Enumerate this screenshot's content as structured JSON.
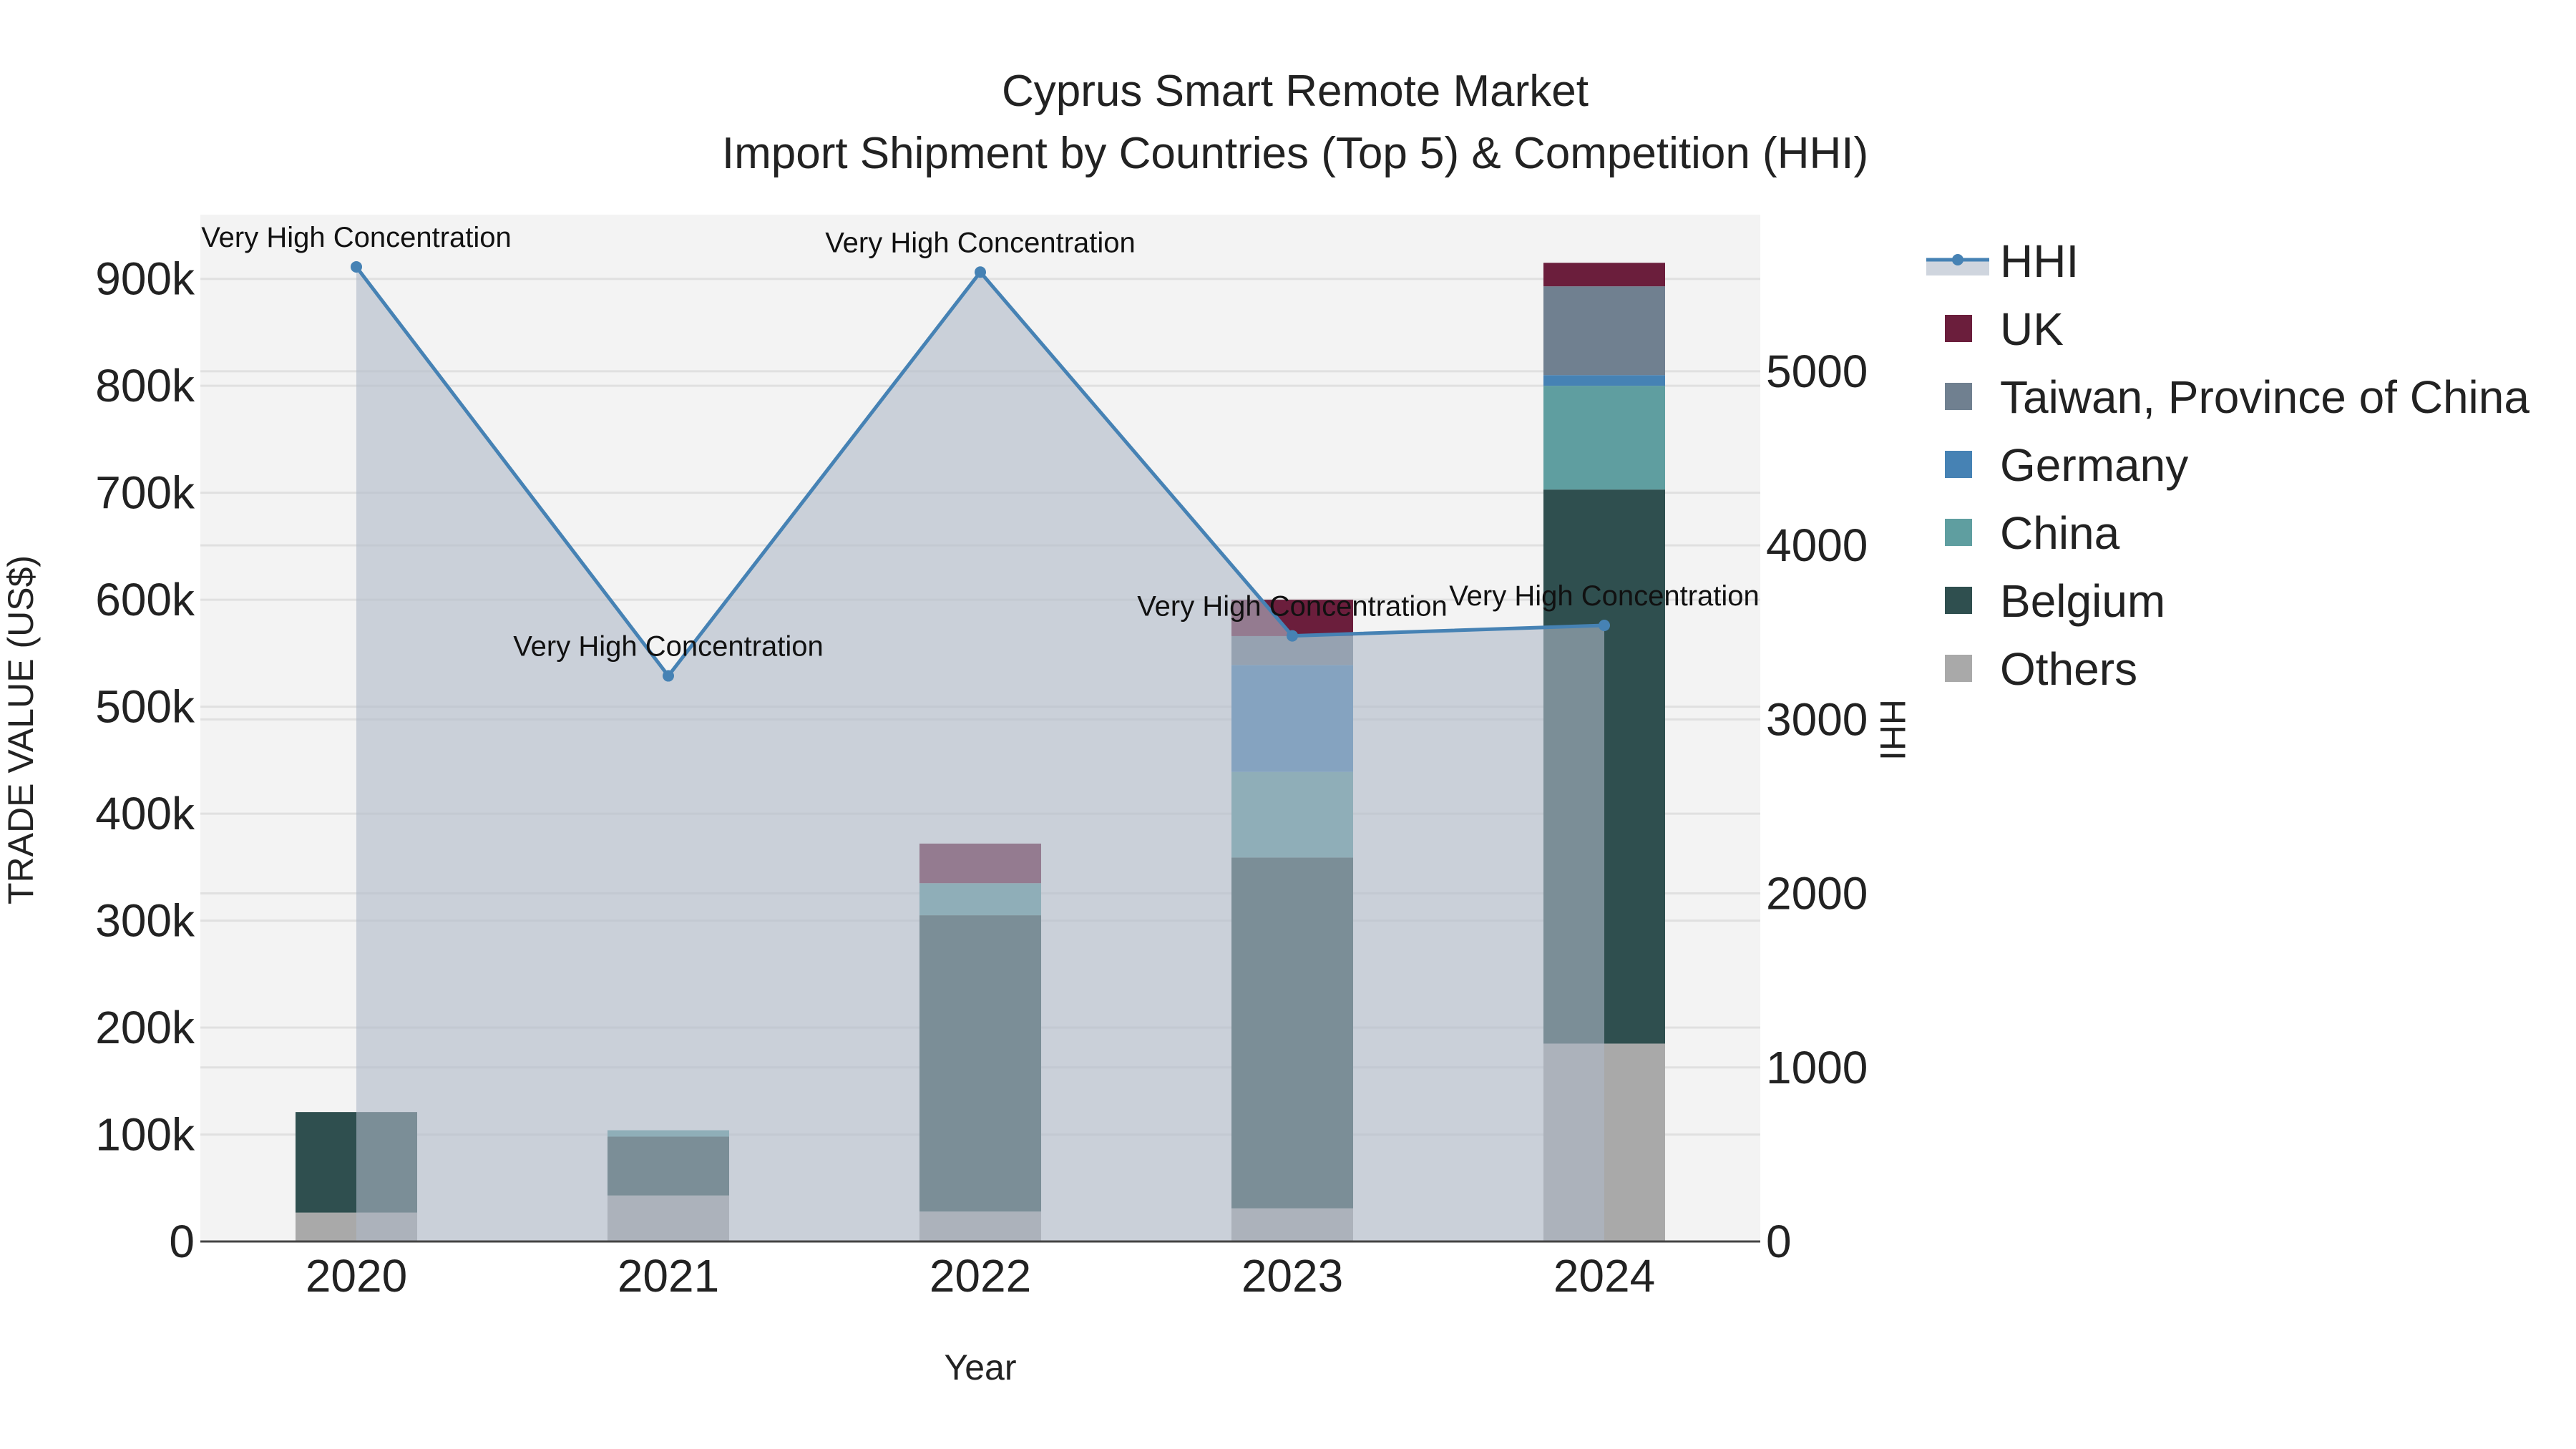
{
  "chart_data": {
    "type": "bar",
    "title": "Cyprus Smart Remote Market",
    "subtitle": "Import Shipment by Countries (Top 5) & Competition (HHI)",
    "xlabel": "Year",
    "ylabel": "TRADE VALUE (US$)",
    "y2label": "HHI",
    "categories": [
      "2020",
      "2021",
      "2022",
      "2023",
      "2024"
    ],
    "ylim": [
      0,
      960000
    ],
    "y2lim": [
      0,
      5900
    ],
    "yticks": [
      0,
      100000,
      200000,
      300000,
      400000,
      500000,
      600000,
      700000,
      800000,
      900000
    ],
    "ytick_labels": [
      "0",
      "100k",
      "200k",
      "300k",
      "400k",
      "500k",
      "600k",
      "700k",
      "800k",
      "900k"
    ],
    "y2ticks": [
      0,
      1000,
      2000,
      3000,
      4000,
      5000
    ],
    "y2tick_labels": [
      "0",
      "1000",
      "2000",
      "3000",
      "4000",
      "5000"
    ],
    "series": [
      {
        "name": "Others",
        "color": "#A9A9A9",
        "values": [
          27000,
          43000,
          28000,
          31000,
          185000
        ]
      },
      {
        "name": "Belgium",
        "color": "#2F4F4F",
        "values": [
          94000,
          55000,
          277000,
          328000,
          518000
        ]
      },
      {
        "name": "China",
        "color": "#5F9EA0",
        "values": [
          0,
          6000,
          30000,
          80000,
          97000
        ]
      },
      {
        "name": "Germany",
        "color": "#4682B4",
        "values": [
          0,
          0,
          0,
          100000,
          10000
        ]
      },
      {
        "name": "Taiwan, Province of China",
        "color": "#708090",
        "values": [
          0,
          0,
          0,
          27000,
          83000
        ]
      },
      {
        "name": "UK",
        "color": "#6B1E3C",
        "values": [
          0,
          0,
          37000,
          34000,
          22000
        ]
      }
    ],
    "hhi": {
      "name": "HHI",
      "color": "#4682B4",
      "values": [
        5600,
        3250,
        5570,
        3480,
        3540
      ],
      "annotations": [
        "Very High Concentration",
        "Very High Concentration",
        "Very High Concentration",
        "Very High Concentration",
        "Very High Concentration"
      ]
    },
    "legend": [
      "HHI",
      "UK",
      "Taiwan, Province of China",
      "Germany",
      "China",
      "Belgium",
      "Others"
    ],
    "legend_position": "right",
    "grid": true
  }
}
